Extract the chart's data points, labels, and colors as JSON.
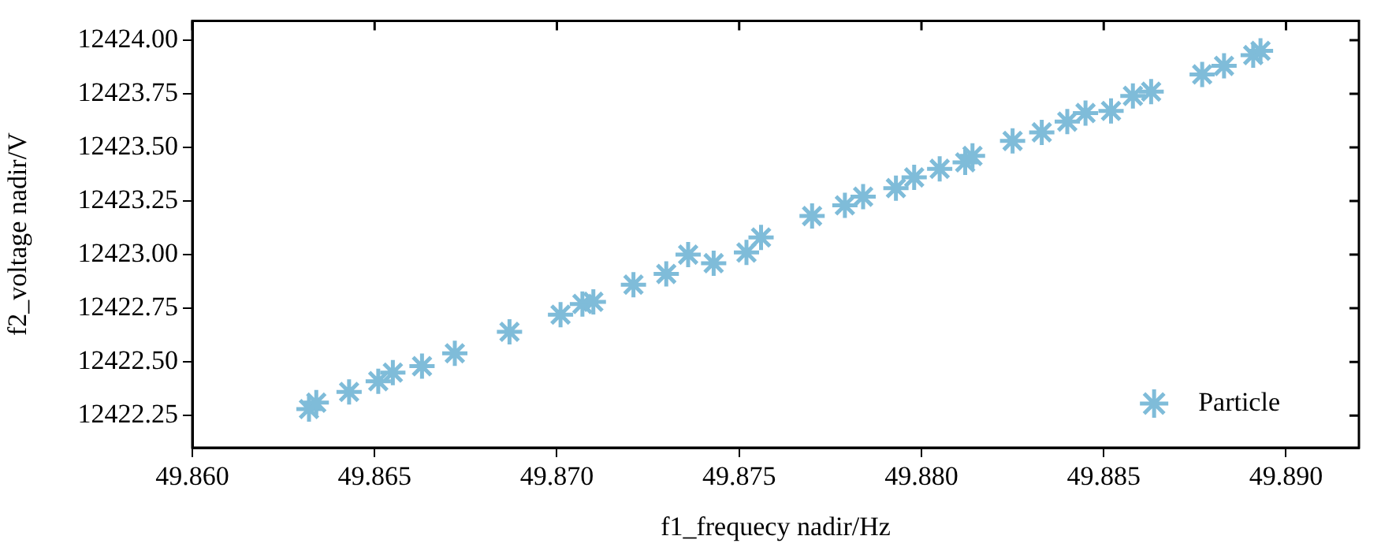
{
  "chart_data": {
    "type": "scatter",
    "xlabel": "f1_frequecy nadir/Hz",
    "ylabel": "f2_voltage nadir/V",
    "marker": "cross",
    "legend": "bottom right",
    "grid": false,
    "xlim": [
      49.86,
      49.892
    ],
    "ylim": [
      12422.1,
      12424.09
    ],
    "xticks": [
      {
        "value": 49.86,
        "label": "49.860"
      },
      {
        "value": 49.865,
        "label": "49.865"
      },
      {
        "value": 49.87,
        "label": "49.870"
      },
      {
        "value": 49.875,
        "label": "49.875"
      },
      {
        "value": 49.88,
        "label": "49.880"
      },
      {
        "value": 49.885,
        "label": "49.885"
      },
      {
        "value": 49.89,
        "label": "49.890"
      }
    ],
    "yticks": [
      {
        "value": 12422.25,
        "label": "12422.25"
      },
      {
        "value": 12422.5,
        "label": "12422.50"
      },
      {
        "value": 12422.75,
        "label": "12422.75"
      },
      {
        "value": 12423,
        "label": "12423.00"
      },
      {
        "value": 12423.25,
        "label": "12423.25"
      },
      {
        "value": 12423.5,
        "label": "12423.50"
      },
      {
        "value": 12423.75,
        "label": "12423.75"
      },
      {
        "value": 12424,
        "label": "12424.00"
      }
    ],
    "series": [
      {
        "name": "Particle",
        "color": "#7fbcd9",
        "x": [
          49.8632,
          49.8634,
          49.8643,
          49.8651,
          49.8655,
          49.8663,
          49.8672,
          49.8687,
          49.8701,
          49.8707,
          49.871,
          49.8721,
          49.873,
          49.8736,
          49.8743,
          49.8752,
          49.8756,
          49.877,
          49.8779,
          49.8784,
          49.8793,
          49.8798,
          49.8805,
          49.8812,
          49.8814,
          49.8825,
          49.8833,
          49.884,
          49.8845,
          49.8852,
          49.8858,
          49.8863,
          49.8877,
          49.8883,
          49.8891,
          49.8893
        ],
        "values": [
          12422.28,
          12422.31,
          12422.36,
          12422.41,
          12422.45,
          12422.48,
          12422.54,
          12422.64,
          12422.72,
          12422.77,
          12422.78,
          12422.86,
          12422.91,
          12423.0,
          12422.96,
          12423.01,
          12423.08,
          12423.18,
          12423.23,
          12423.27,
          12423.31,
          12423.36,
          12423.4,
          12423.43,
          12423.46,
          12423.53,
          12423.57,
          12423.62,
          12423.66,
          12423.67,
          12423.74,
          12423.76,
          12423.84,
          12423.88,
          12423.93,
          12423.95
        ]
      }
    ]
  }
}
